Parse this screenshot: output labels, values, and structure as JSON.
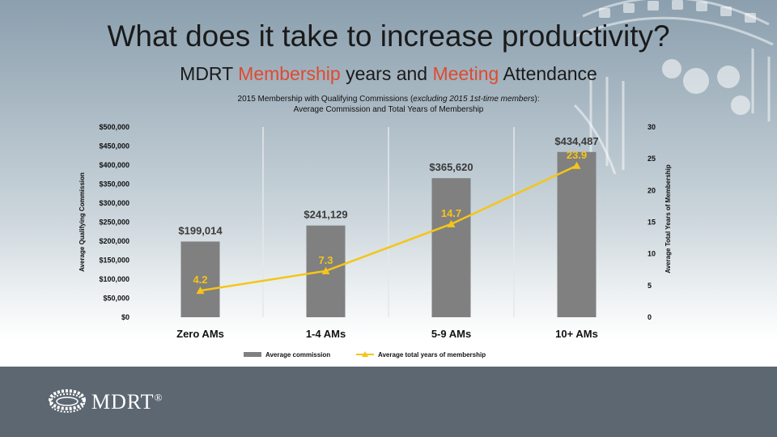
{
  "slide": {
    "title": "What does it take to increase productivity?",
    "subtitle": {
      "part1": "MDRT ",
      "highlight1": "Membership",
      "part2": " years and ",
      "highlight2": "Meeting",
      "part3": " Attendance"
    },
    "highlight_color": "#e04a2f"
  },
  "footer": {
    "logo_text": "MDRT",
    "logo_mark": "®",
    "logo_icon": "mdrt-ring-icon",
    "background": "#5c6772"
  },
  "chart_data": {
    "type": "bar",
    "title_line1_a": "2015 Membership with Qualifying Commissions (",
    "title_line1_italic": "excluding 2015 1st-time members",
    "title_line1_b": "):",
    "title_line2": "Average Commission and Total Years of Membership",
    "categories": [
      "Zero AMs",
      "1-4 AMs",
      "5-9 AMs",
      "10+ AMs"
    ],
    "series": [
      {
        "name": "Average commission",
        "kind": "bar",
        "axis": "left",
        "color": "#808080",
        "values": [
          199014,
          241129,
          365620,
          434487
        ],
        "labels": [
          "$199,014",
          "$241,129",
          "$365,620",
          "$434,487"
        ]
      },
      {
        "name": "Average total years of membership",
        "kind": "line",
        "axis": "right",
        "color": "#f5c518",
        "values": [
          4.2,
          7.3,
          14.7,
          23.9
        ],
        "labels": [
          "4.2",
          "7.3",
          "14.7",
          "23.9"
        ]
      }
    ],
    "ylabel": "Average Qualifying Commission",
    "ylim": [
      0,
      500000
    ],
    "yticks": [
      0,
      50000,
      100000,
      150000,
      200000,
      250000,
      300000,
      350000,
      400000,
      450000,
      500000
    ],
    "ytick_labels": [
      "$0",
      "$50,000",
      "$100,000",
      "$150,000",
      "$200,000",
      "$250,000",
      "$300,000",
      "$350,000",
      "$400,000",
      "$450,000",
      "$500,000"
    ],
    "y2label": "Average Total Years of Membership",
    "y2lim": [
      0,
      30
    ],
    "y2ticks": [
      0,
      5,
      10,
      15,
      20,
      25,
      30
    ],
    "y2tick_labels": [
      "0",
      "5",
      "10",
      "15",
      "20",
      "25",
      "30"
    ],
    "grid": "vertical separators",
    "legend": "bottom"
  }
}
